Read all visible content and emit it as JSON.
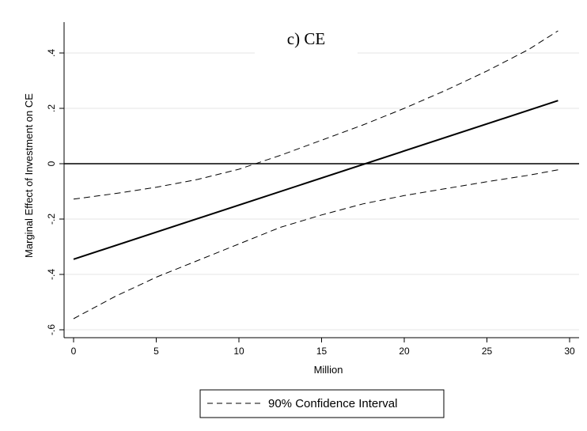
{
  "chart_data": {
    "type": "line",
    "title": "c) CE",
    "xlabel": "Million",
    "ylabel": "Marginal Effect of Investment on CE",
    "xlim": [
      0,
      30
    ],
    "ylim": [
      -0.6,
      0.5
    ],
    "x_ticks": [
      0,
      5,
      10,
      15,
      20,
      25,
      30
    ],
    "x_tick_labels": [
      "0",
      "5",
      "10",
      "15",
      "20",
      "25",
      "30"
    ],
    "y_ticks": [
      -0.6,
      -0.4,
      -0.2,
      0,
      0.2,
      0.4
    ],
    "y_tick_labels": [
      "-.6",
      "-.4",
      "-.2",
      "0",
      ".2",
      ".4"
    ],
    "grid": true,
    "reference_line_y": 0,
    "legend": {
      "position": "bottom",
      "entries": [
        "90% Confidence Interval"
      ]
    },
    "series": [
      {
        "style": "solid",
        "x": [
          0,
          29.3
        ],
        "y": [
          -0.345,
          0.228
        ]
      },
      {
        "name": "90% Confidence Interval",
        "style": "dashed",
        "role": "upper",
        "x": [
          0,
          2.5,
          5,
          7.5,
          10,
          12.5,
          15,
          17.5,
          20,
          22.5,
          25,
          27.5,
          29.3
        ],
        "y": [
          -0.128,
          -0.108,
          -0.085,
          -0.057,
          -0.02,
          0.03,
          0.085,
          0.14,
          0.2,
          0.265,
          0.335,
          0.412,
          0.48
        ]
      },
      {
        "name": "90% Confidence Interval",
        "style": "dashed",
        "role": "lower",
        "x": [
          0,
          2.5,
          5,
          7.5,
          10,
          12.5,
          15,
          17.5,
          20,
          22.5,
          25,
          27.5,
          29.3
        ],
        "y": [
          -0.56,
          -0.48,
          -0.41,
          -0.35,
          -0.29,
          -0.23,
          -0.185,
          -0.145,
          -0.115,
          -0.09,
          -0.065,
          -0.042,
          -0.022
        ]
      }
    ]
  }
}
